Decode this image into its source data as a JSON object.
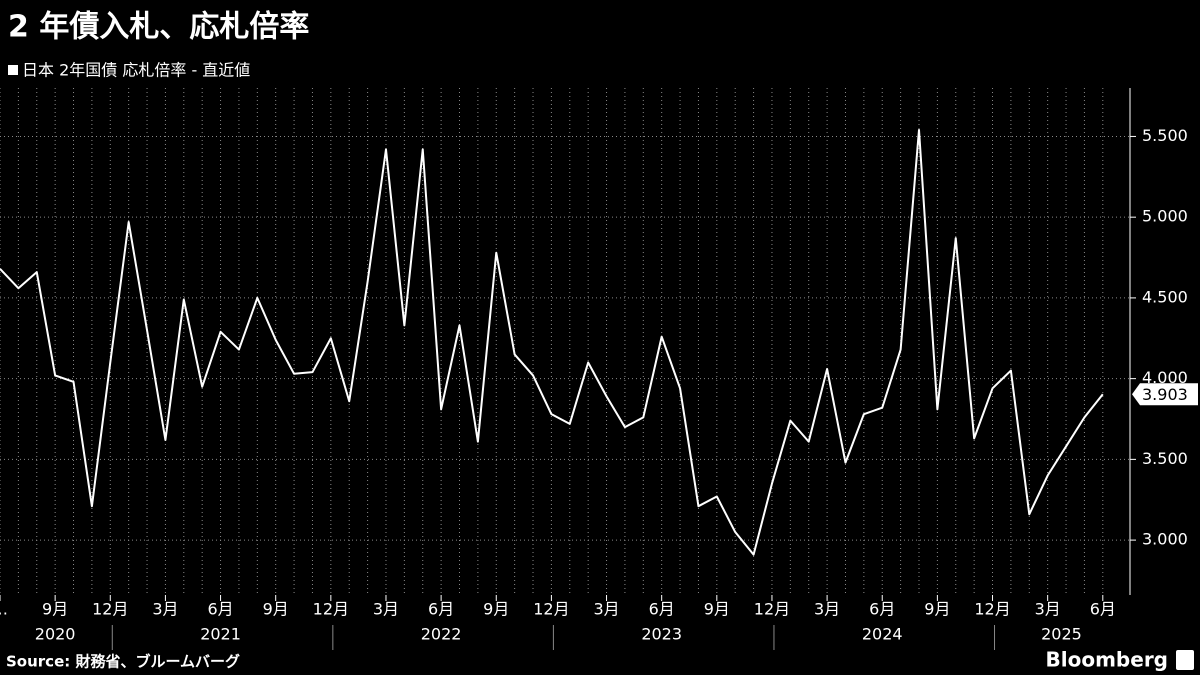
{
  "chart_data": {
    "type": "line",
    "title": "2 年債入札、応札倍率",
    "subtitle": "日本 2年国債 応札倍率 - 直近値",
    "source": "Source: 財務省、ブルームバーグ",
    "brand": "Bloomberg",
    "categories": [
      "…",
      null,
      null,
      "9月",
      null,
      null,
      "12月",
      null,
      null,
      "3月",
      null,
      null,
      "6月",
      null,
      null,
      "9月",
      null,
      null,
      "12月",
      null,
      null,
      "3月",
      null,
      null,
      "6月",
      null,
      null,
      "9月",
      null,
      null,
      "12月",
      null,
      null,
      "3月",
      null,
      null,
      "6月",
      null,
      null,
      "9月",
      null,
      null,
      "12月",
      null,
      null,
      "3月",
      null,
      null,
      "6月",
      null,
      null,
      "9月",
      null,
      null,
      "12月",
      null,
      null,
      "3月",
      null,
      null,
      "6月"
    ],
    "years": [
      "2020",
      "2021",
      "2022",
      "2023",
      "2024",
      "2025"
    ],
    "series": [
      {
        "name": "日本 2年国債 応札倍率 - 直近値",
        "color": "#ffffff",
        "values": [
          4.68,
          4.56,
          4.66,
          4.02,
          3.98,
          3.21,
          4.1,
          4.97,
          4.3,
          3.62,
          4.49,
          3.95,
          4.29,
          4.18,
          4.5,
          4.24,
          4.03,
          4.04,
          4.25,
          3.86,
          4.6,
          5.42,
          4.33,
          5.42,
          3.81,
          4.33,
          3.61,
          4.78,
          4.15,
          4.02,
          3.78,
          3.72,
          4.1,
          3.89,
          3.7,
          3.76,
          4.26,
          3.94,
          3.21,
          3.27,
          3.05,
          2.91,
          3.35,
          3.74,
          3.61,
          4.06,
          3.48,
          3.78,
          3.82,
          4.18,
          5.54,
          3.81,
          4.87,
          3.63,
          3.94,
          4.05,
          3.16,
          3.4,
          3.58,
          3.76,
          3.903
        ]
      }
    ],
    "ylim": [
      2.66,
      5.8
    ],
    "yticks": [
      {
        "value": 3,
        "label": "3.000"
      },
      {
        "value": 3.5,
        "label": "3.500"
      },
      {
        "value": 4,
        "label": "4.000"
      },
      {
        "value": 4.5,
        "label": "4.500"
      },
      {
        "value": 5,
        "label": "5.000"
      },
      {
        "value": 5.5,
        "label": "5.500"
      }
    ],
    "grid": true
  }
}
